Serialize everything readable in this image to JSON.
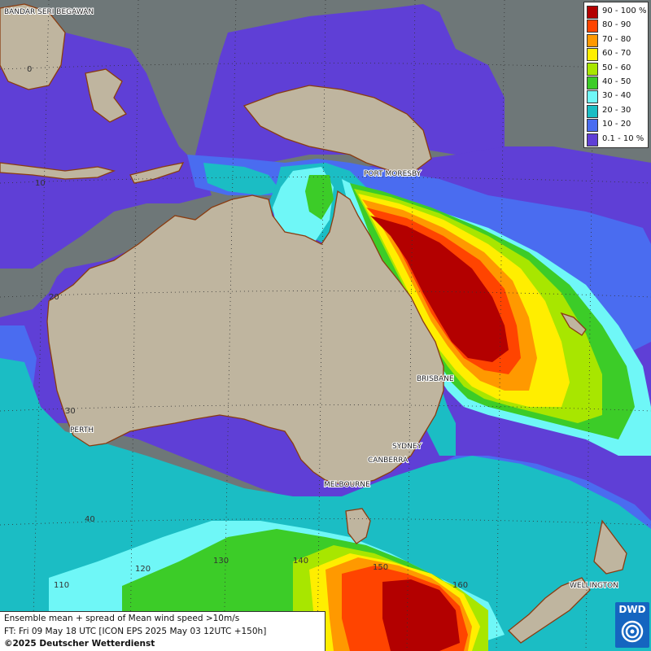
{
  "legend": {
    "items": [
      {
        "label": "90 - 100 %",
        "color": "#b30000"
      },
      {
        "label": "80 - 90",
        "color": "#ff4400"
      },
      {
        "label": "70 - 80",
        "color": "#ff9900"
      },
      {
        "label": "60 - 70",
        "color": "#ffee00"
      },
      {
        "label": "50 - 60",
        "color": "#a8e600"
      },
      {
        "label": "40 - 50",
        "color": "#3ccc28"
      },
      {
        "label": "30 - 40",
        "color": "#6ff7f7"
      },
      {
        "label": "20 - 30",
        "color": "#1bbdc4"
      },
      {
        "label": "10 - 20",
        "color": "#4a6cf0"
      },
      {
        "label": "0.1 - 10 %",
        "color": "#5f3fd6"
      }
    ]
  },
  "cities": {
    "bandar": "BANDAR SERI BEGAWAN",
    "port_moresby": "PORT MORESBY",
    "brisbane": "BRISBANE",
    "perth": "PERTH",
    "sydney": "SYDNEY",
    "canberra": "CANBERRA",
    "melbourne": "MELBOURNE",
    "wellington": "WELLINGTON"
  },
  "ticks": {
    "lat0": "0",
    "lat10": "10",
    "lat20": "20",
    "lat30": "30",
    "lat40": "40",
    "lon110": "110",
    "lon120": "120",
    "lon130": "130",
    "lon140": "140",
    "lon150": "150",
    "lon160": "160"
  },
  "info": {
    "line1": "Ensemble mean + spread of Mean wind speed >10m/s",
    "line2": "FT: Fri 09 May 18 UTC [ICON EPS 2025 May 03 12UTC +150h]",
    "copyright": "©2025 Deutscher Wetterdienst"
  },
  "logo": {
    "text": "DWD"
  }
}
